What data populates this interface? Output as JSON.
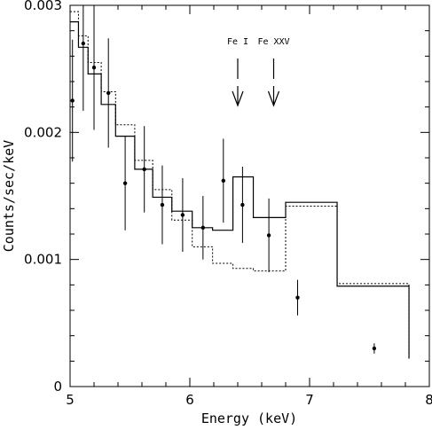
{
  "chart_data": {
    "type": "scatter",
    "title": "",
    "xlabel": "Energy (keV)",
    "ylabel": "Counts/sec/keV",
    "xlim": [
      5,
      8
    ],
    "ylim": [
      0,
      0.003
    ],
    "x_ticks": [
      "5",
      "6",
      "7",
      "8"
    ],
    "y_ticks": [
      "0",
      "0.001",
      "0.002",
      "0.003"
    ],
    "grid": false,
    "points": [
      {
        "x": 5.02,
        "y": 0.00225,
        "err": 0.00048
      },
      {
        "x": 5.11,
        "y": 0.0027,
        "err": 0.00053
      },
      {
        "x": 5.2,
        "y": 0.00251,
        "err": 0.00049
      },
      {
        "x": 5.32,
        "y": 0.00231,
        "err": 0.00043
      },
      {
        "x": 5.46,
        "y": 0.0016,
        "err": 0.00037
      },
      {
        "x": 5.62,
        "y": 0.00171,
        "err": 0.00034
      },
      {
        "x": 5.77,
        "y": 0.00143,
        "err": 0.00031
      },
      {
        "x": 5.94,
        "y": 0.00135,
        "err": 0.00029
      },
      {
        "x": 6.11,
        "y": 0.00125,
        "err": 0.00025
      },
      {
        "x": 6.28,
        "y": 0.00162,
        "err": 0.00033
      },
      {
        "x": 6.44,
        "y": 0.00143,
        "err": 0.0003
      },
      {
        "x": 6.66,
        "y": 0.00119,
        "err": 0.00029
      },
      {
        "x": 6.9,
        "y": 0.0007,
        "err": 0.00014
      },
      {
        "x": 7.54,
        "y": 0.0003,
        "err": 4e-05
      }
    ],
    "model_solid": {
      "edges": [
        5.0,
        5.07,
        5.15,
        5.26,
        5.38,
        5.54,
        5.69,
        5.85,
        6.02,
        6.19,
        6.36,
        6.53,
        6.8,
        7.23,
        7.83
      ],
      "values": [
        0.00287,
        0.00267,
        0.00246,
        0.00222,
        0.00197,
        0.00171,
        0.00149,
        0.00138,
        0.00125,
        0.00123,
        0.00165,
        0.00133,
        0.00145,
        0.00079,
        0.00022
      ]
    },
    "model_dotted": {
      "edges": [
        5.0,
        5.07,
        5.15,
        5.26,
        5.38,
        5.54,
        5.69,
        5.85,
        6.02,
        6.19,
        6.36,
        6.53,
        6.8,
        7.23,
        7.83
      ],
      "values": [
        0.00295,
        0.00276,
        0.00255,
        0.00232,
        0.00206,
        0.00178,
        0.00155,
        0.00131,
        0.0011,
        0.00097,
        0.00093,
        0.00091,
        0.00142,
        0.00081,
        0.00024
      ]
    },
    "annotations": [
      {
        "text": "Fe I",
        "x": 6.4
      },
      {
        "text": "Fe XXV",
        "x": 6.7
      }
    ]
  }
}
